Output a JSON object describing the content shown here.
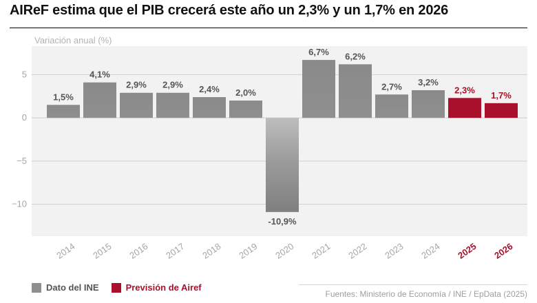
{
  "header": {
    "title": "AIReF estima que el PIB crecerá este año un 2,3% y un 1,7% en 2026"
  },
  "chart_data": {
    "type": "bar",
    "title": "AIReF estima que el PIB crecerá este año un 2,3% y un 1,7% en 2026",
    "ylabel": "Variación anual (%)",
    "xlabel": "",
    "categories": [
      "2014",
      "2015",
      "2016",
      "2017",
      "2018",
      "2019",
      "2020",
      "2021",
      "2022",
      "2023",
      "2024",
      "2025",
      "2026"
    ],
    "values": [
      1.5,
      4.1,
      2.9,
      2.9,
      2.4,
      2.0,
      -10.9,
      6.7,
      6.2,
      2.7,
      3.2,
      2.3,
      1.7
    ],
    "value_labels": [
      "1,5%",
      "4,1%",
      "2,9%",
      "2,9%",
      "2,4%",
      "2,0%",
      "-10,9%",
      "6,7%",
      "6,2%",
      "2,7%",
      "3,2%",
      "2,3%",
      "1,7%"
    ],
    "series_type": [
      "ine",
      "ine",
      "ine",
      "ine",
      "ine",
      "ine",
      "ine",
      "ine",
      "ine",
      "ine",
      "ine",
      "airef",
      "airef"
    ],
    "yticks": [
      5,
      0,
      -5,
      -10
    ],
    "ytick_labels": [
      "5",
      "0",
      "−5",
      "−10"
    ],
    "ylim": [
      -13.7,
      8.3
    ],
    "grid": true,
    "legend_position": "bottom-left"
  },
  "legend": {
    "ine_label": "Dato del INE",
    "airef_label": "Previsión de Airef"
  },
  "colors": {
    "ine_bar": "#8f8f8f",
    "ine_label": "#555555",
    "airef_bar": "#a8102b",
    "airef_label": "#a8102b",
    "plot_bg": "#f2f2f2",
    "grid": "#cfcfcf",
    "axis_text": "#a6a6a6"
  },
  "footer": {
    "source": "Fuentes: Ministerio de Economía / INE / EpData (2025)"
  }
}
